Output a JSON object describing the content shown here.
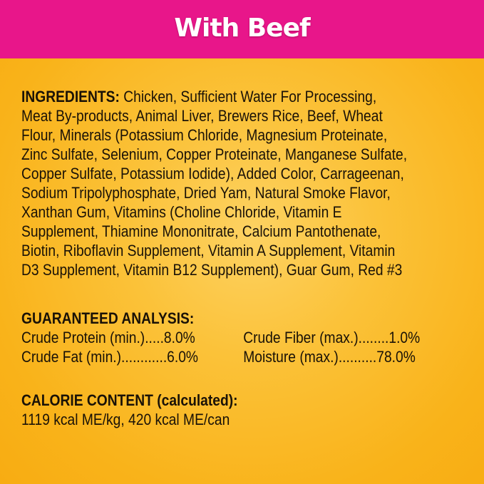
{
  "header": {
    "title": "With Beef",
    "background": "#e8168a"
  },
  "ingredients": {
    "heading": "INGREDIENTS:",
    "lines": [
      " Chicken, Sufficient Water For Processing,",
      "Meat By-products, Animal Liver, Brewers Rice, Beef, Wheat",
      "Flour, Minerals (Potassium Chloride, Magnesium Proteinate,",
      "Zinc Sulfate, Selenium, Copper Proteinate, Manganese Sulfate,",
      "Copper Sulfate, Potassium Iodide), Added Color, Carrageenan,",
      "Sodium Tripolyphosphate, Dried Yam, Natural Smoke Flavor,",
      "Xanthan Gum, Vitamins (Choline Chloride, Vitamin E",
      "Supplement, Thiamine Mononitrate, Calcium Pantothenate,",
      "Biotin, Riboflavin Supplement, Vitamin A Supplement, Vitamin",
      "D3 Supplement, Vitamin B12 Supplement), Guar Gum, Red #3"
    ]
  },
  "guaranteed_analysis": {
    "heading": "GUARANTEED ANALYSIS:",
    "rows": [
      [
        "Crude Protein (min.).....8.0%",
        "Crude Fiber (max.)........1.0%"
      ],
      [
        "Crude Fat (min.)............6.0%",
        "Moisture (max.)..........78.0%"
      ]
    ]
  },
  "calorie_content": {
    "heading": "CALORIE CONTENT (calculated):",
    "value": "1119 kcal ME/kg, 420 kcal ME/can"
  }
}
